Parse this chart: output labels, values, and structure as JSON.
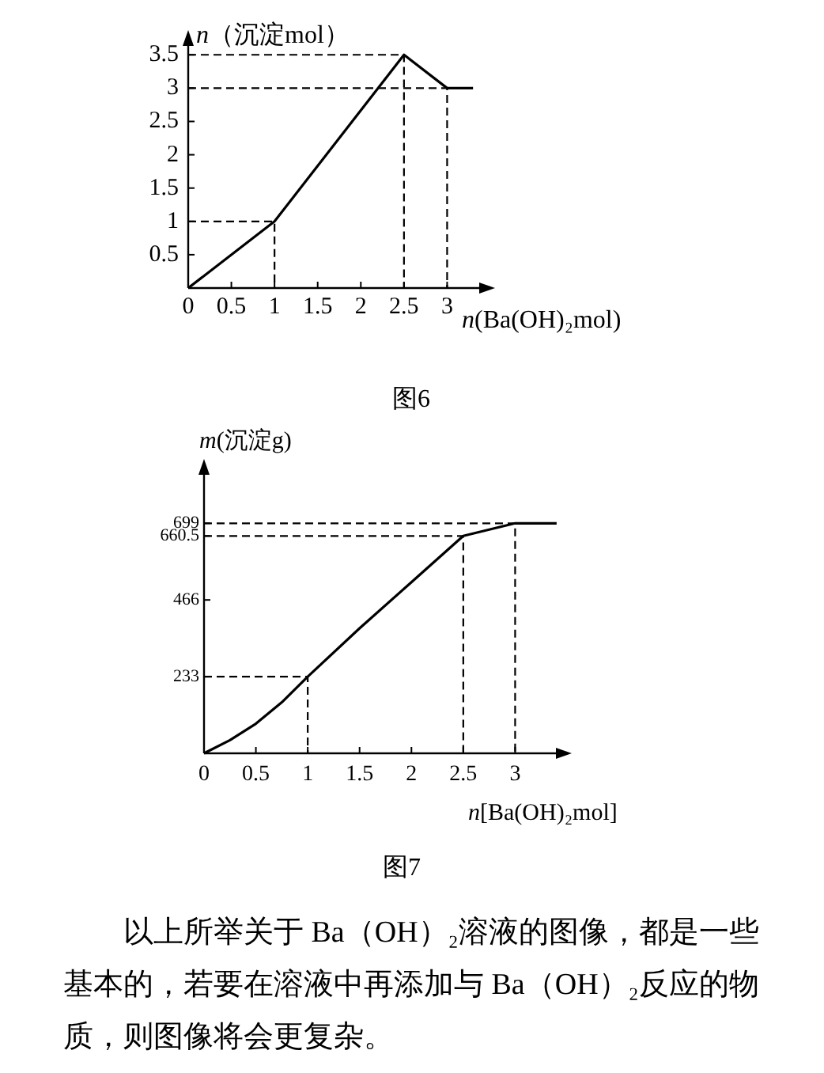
{
  "chart_data": [
    {
      "type": "line",
      "title": "图6",
      "xlabel": "*n*(Ba(OH)₂mol)",
      "ylabel": "*n*（沉淀mol）",
      "xlim": [
        0,
        3.5
      ],
      "ylim": [
        0,
        3.8
      ],
      "xticks": [
        0,
        0.5,
        1,
        1.5,
        2,
        2.5,
        3
      ],
      "yticks": [
        0.5,
        1,
        1.5,
        2,
        2.5,
        3,
        3.5
      ],
      "series": [
        {
          "color": "#000000",
          "x": [
            0,
            1,
            2.5,
            3,
            3.3
          ],
          "values": [
            0,
            1,
            3.5,
            3,
            3
          ]
        },
        {
          "color": "#000000",
          "line_style": "dashed",
          "x": [
            0,
            1,
            1
          ],
          "values": [
            1,
            1,
            0
          ]
        },
        {
          "color": "#000000",
          "line_style": "dashed",
          "x": [
            0,
            2.5,
            2.5
          ],
          "values": [
            3.5,
            3.5,
            0
          ]
        },
        {
          "color": "#000000",
          "line_style": "dashed",
          "x": [
            0,
            3,
            3
          ],
          "values": [
            3,
            3,
            0
          ]
        }
      ]
    },
    {
      "type": "line",
      "title": "图7",
      "xlabel": "*n*[Ba(OH)₂mol]",
      "ylabel": "*m*(沉淀g)",
      "xlim": [
        0,
        3.5
      ],
      "ylim": [
        0,
        880
      ],
      "xticks": [
        0,
        0.5,
        1,
        1.5,
        2,
        2.5,
        3
      ],
      "yticks": [
        233,
        466,
        660.5,
        699
      ],
      "series": [
        {
          "color": "#000000",
          "x": [
            0,
            0.25,
            0.5,
            0.75,
            1,
            1.5,
            2,
            2.5,
            3,
            3.4
          ],
          "values": [
            0,
            40,
            90,
            155,
            233,
            380,
            520,
            660.5,
            699,
            699
          ]
        },
        {
          "color": "#000000",
          "line_style": "dashed",
          "x": [
            0,
            1,
            1
          ],
          "values": [
            233,
            233,
            0
          ]
        },
        {
          "color": "#000000",
          "line_style": "dashed",
          "x": [
            0,
            2.5,
            2.5
          ],
          "values": [
            660.5,
            660.5,
            0
          ]
        },
        {
          "color": "#000000",
          "line_style": "dashed",
          "x": [
            0,
            3,
            3
          ],
          "values": [
            699,
            699,
            0
          ]
        }
      ],
      "annotations": [
        "以上所举关于 Ba（OH）₂溶液的图像，都是一些基本的，若要在溶液中再添加与 Ba（OH）₂反应的物质，则图像将会更复杂。"
      ]
    }
  ]
}
